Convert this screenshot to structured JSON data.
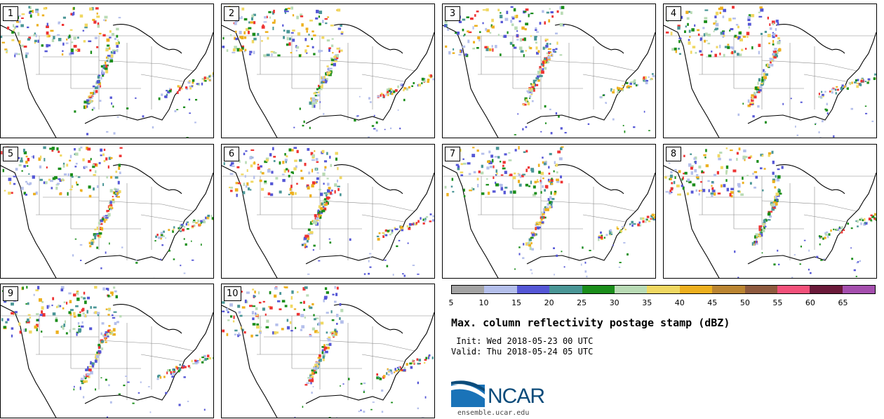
{
  "stamps": [
    {
      "label": "1"
    },
    {
      "label": "2"
    },
    {
      "label": "3"
    },
    {
      "label": "4"
    },
    {
      "label": "5"
    },
    {
      "label": "6"
    },
    {
      "label": "7"
    },
    {
      "label": "8"
    },
    {
      "label": "9"
    },
    {
      "label": "10"
    }
  ],
  "colorbar": {
    "colors": [
      "#a3a3a3",
      "#b4bfeb",
      "#5557d6",
      "#4a9696",
      "#1b8e1b",
      "#b9dbb5",
      "#f0d862",
      "#edb01f",
      "#bb8532",
      "#8e5a3e",
      "#f2517a",
      "#6b1a3a",
      "#a54fae"
    ],
    "labels": [
      "5",
      "10",
      "15",
      "20",
      "25",
      "30",
      "35",
      "40",
      "45",
      "50",
      "55",
      "60",
      "65"
    ]
  },
  "title": "Max. column reflectivity postage stamp (dBZ)",
  "init": " Init: Wed 2018-05-23 00 UTC",
  "valid": "Valid: Thu 2018-05-24 05 UTC",
  "logo": {
    "text": "NCAR",
    "url": "ensemble.ucar.edu"
  }
}
